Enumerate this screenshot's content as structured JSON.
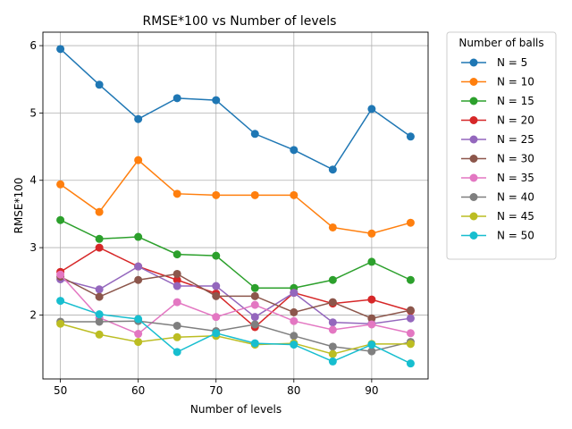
{
  "chart_data": {
    "type": "line",
    "title": "RMSE*100 vs Number of levels",
    "xlabel": "Number of levels",
    "ylabel": "RMSE*100",
    "x": [
      50,
      55,
      60,
      65,
      70,
      75,
      80,
      85,
      90,
      95
    ],
    "xlim": [
      47.75,
      97.25
    ],
    "ylim": [
      1.05,
      6.2
    ],
    "xticks": [
      50,
      60,
      70,
      80,
      90
    ],
    "yticks": [
      2,
      3,
      4,
      5,
      6
    ],
    "grid": true,
    "legend": {
      "title": "Number of balls",
      "placement": "outside-top-right"
    },
    "series": [
      {
        "name": "N = 5",
        "color": "#1f77b4",
        "values": [
          5.95,
          5.42,
          4.91,
          5.22,
          5.19,
          4.69,
          4.45,
          4.16,
          5.06,
          4.65
        ]
      },
      {
        "name": "N = 10",
        "color": "#ff7f0e",
        "values": [
          3.94,
          3.53,
          4.3,
          3.8,
          3.78,
          3.78,
          3.78,
          3.3,
          3.21,
          3.37
        ]
      },
      {
        "name": "N = 15",
        "color": "#2ca02c",
        "values": [
          3.41,
          3.13,
          3.16,
          2.9,
          2.88,
          2.4,
          2.4,
          2.52,
          2.79,
          2.52
        ]
      },
      {
        "name": "N = 20",
        "color": "#d62728",
        "values": [
          2.64,
          3.0,
          2.72,
          2.52,
          2.32,
          1.82,
          2.33,
          2.17,
          2.23,
          2.06
        ]
      },
      {
        "name": "N = 25",
        "color": "#9467bd",
        "values": [
          2.53,
          2.38,
          2.72,
          2.43,
          2.43,
          1.97,
          2.33,
          1.89,
          1.87,
          1.95
        ]
      },
      {
        "name": "N = 30",
        "color": "#8c564b",
        "values": [
          2.57,
          2.27,
          2.52,
          2.61,
          2.28,
          2.28,
          2.04,
          2.19,
          1.95,
          2.07
        ]
      },
      {
        "name": "N = 35",
        "color": "#e377c2",
        "values": [
          2.6,
          1.96,
          1.72,
          2.19,
          1.97,
          2.15,
          1.91,
          1.78,
          1.86,
          1.73
        ]
      },
      {
        "name": "N = 40",
        "color": "#7f7f7f",
        "values": [
          1.9,
          1.9,
          1.91,
          1.84,
          1.76,
          1.86,
          1.69,
          1.53,
          1.46,
          1.6
        ]
      },
      {
        "name": "N = 45",
        "color": "#bcbd22",
        "values": [
          1.87,
          1.71,
          1.6,
          1.67,
          1.69,
          1.56,
          1.58,
          1.42,
          1.57,
          1.57
        ]
      },
      {
        "name": "N = 50",
        "color": "#17becf",
        "values": [
          2.21,
          2.01,
          1.94,
          1.45,
          1.73,
          1.58,
          1.56,
          1.31,
          1.56,
          1.28
        ]
      }
    ]
  }
}
